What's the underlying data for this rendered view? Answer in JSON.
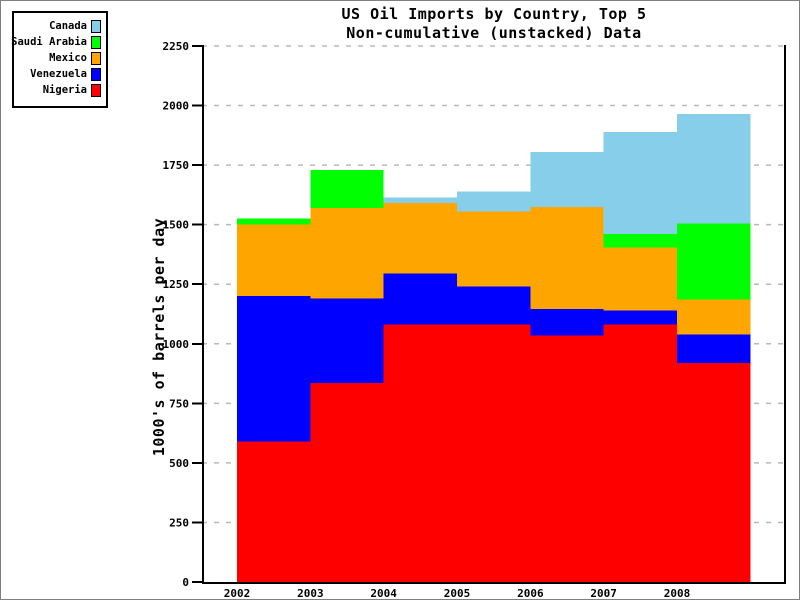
{
  "figure": {
    "background": "#ffffff",
    "border_color": "#7f7f7f"
  },
  "title": {
    "line1": "US Oil Imports by Country, Top 5",
    "line2": "Non-cumulative (unstacked) Data"
  },
  "y_axis": {
    "label": "1000's of barrels per day",
    "tick_values": [
      0,
      250,
      500,
      750,
      1000,
      1250,
      1500,
      1750,
      2000,
      2250
    ],
    "max": 2250
  },
  "x_axis": {
    "tick_labels": [
      "2002",
      "2003",
      "2004",
      "2005",
      "2006",
      "2007",
      "2008"
    ]
  },
  "legend": {
    "items": [
      {
        "label": "Canada",
        "color": "#87CEEB"
      },
      {
        "label": "Saudi Arabia",
        "color": "#00FF00"
      },
      {
        "label": "Mexico",
        "color": "#FFA500"
      },
      {
        "label": "Venezuela",
        "color": "#0000FF"
      },
      {
        "label": "Nigeria",
        "color": "#FF0000"
      }
    ]
  },
  "chart_data": {
    "type": "area",
    "variant": "non-cumulative overlapping step areas (post steps, 1-year-wide blocks)",
    "title": "US Oil Imports by Country, Top 5 — Non-cumulative (unstacked) Data",
    "xlabel": "",
    "ylabel": "1000's of barrels per day",
    "x": [
      2002,
      2003,
      2004,
      2005,
      2006,
      2007,
      2008
    ],
    "x_fill_end": 2009,
    "xlim": [
      2001.5,
      2009.5
    ],
    "ylim": [
      0,
      2250
    ],
    "grid": {
      "horizontal": true,
      "style": "dashed",
      "color": "#b9b9b9"
    },
    "legend_position": "outside-top-left",
    "paint_order_note": "series painted back-to-front in listed order; null = value occluded by a later-painted series (not readable from pixels)",
    "series": [
      {
        "name": "Canada",
        "color": "#87CEEB",
        "values": [
          null,
          null,
          1615,
          1640,
          1805,
          1890,
          1965
        ]
      },
      {
        "name": "Saudi Arabia",
        "color": "#00FF00",
        "values": [
          1525,
          1730,
          null,
          null,
          null,
          1460,
          1505
        ]
      },
      {
        "name": "Mexico",
        "color": "#FFA500",
        "values": [
          1500,
          1570,
          1590,
          1555,
          1575,
          1405,
          1185
        ]
      },
      {
        "name": "Venezuela",
        "color": "#0000FF",
        "values": [
          1200,
          1190,
          1295,
          1240,
          1145,
          1140,
          1040
        ]
      },
      {
        "name": "Nigeria",
        "color": "#FF0000",
        "values": [
          590,
          835,
          1080,
          1080,
          1035,
          1080,
          920
        ]
      }
    ]
  }
}
